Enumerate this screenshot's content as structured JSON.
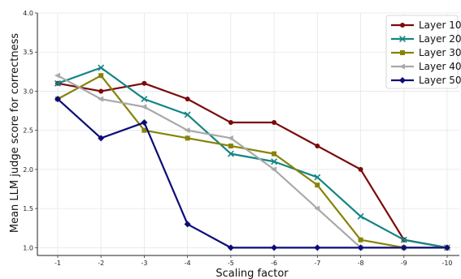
{
  "chart_data": {
    "type": "line",
    "title": "",
    "xlabel": "Scaling factor",
    "ylabel": "Mean LLM judge score for correctness",
    "categories": [
      "-1",
      "-2",
      "-3",
      "-4",
      "-5",
      "-6",
      "-7",
      "-8",
      "-9",
      "-10"
    ],
    "ylim": [
      0.9,
      4.0
    ],
    "yticks": [
      "1.0",
      "1.5",
      "2.0",
      "2.5",
      "3.0",
      "3.5",
      "4.0"
    ],
    "grid": true,
    "legend_position": "top-right",
    "series": [
      {
        "name": "Layer 10",
        "color": "#7b0a0a",
        "marker": "circle",
        "values": [
          3.1,
          3.0,
          3.1,
          2.9,
          2.6,
          2.6,
          2.3,
          2.0,
          1.1,
          1.0
        ]
      },
      {
        "name": "Layer 20",
        "color": "#138584",
        "marker": "x",
        "values": [
          3.1,
          3.3,
          2.9,
          2.7,
          2.2,
          2.1,
          1.9,
          1.4,
          1.1,
          1.0
        ]
      },
      {
        "name": "Layer 30",
        "color": "#868308",
        "marker": "square",
        "values": [
          2.9,
          3.2,
          2.5,
          2.4,
          2.3,
          2.2,
          1.8,
          1.1,
          1.0,
          1.0
        ]
      },
      {
        "name": "Layer 40",
        "color": "#a9a9a9",
        "marker": "triangle",
        "values": [
          3.2,
          2.9,
          2.8,
          2.5,
          2.4,
          2.0,
          1.5,
          1.0,
          1.0,
          1.0
        ]
      },
      {
        "name": "Layer 50",
        "color": "#0c0c78",
        "marker": "diamond",
        "values": [
          2.9,
          2.4,
          2.6,
          1.3,
          1.0,
          1.0,
          1.0,
          1.0,
          1.0,
          1.0
        ]
      }
    ]
  }
}
